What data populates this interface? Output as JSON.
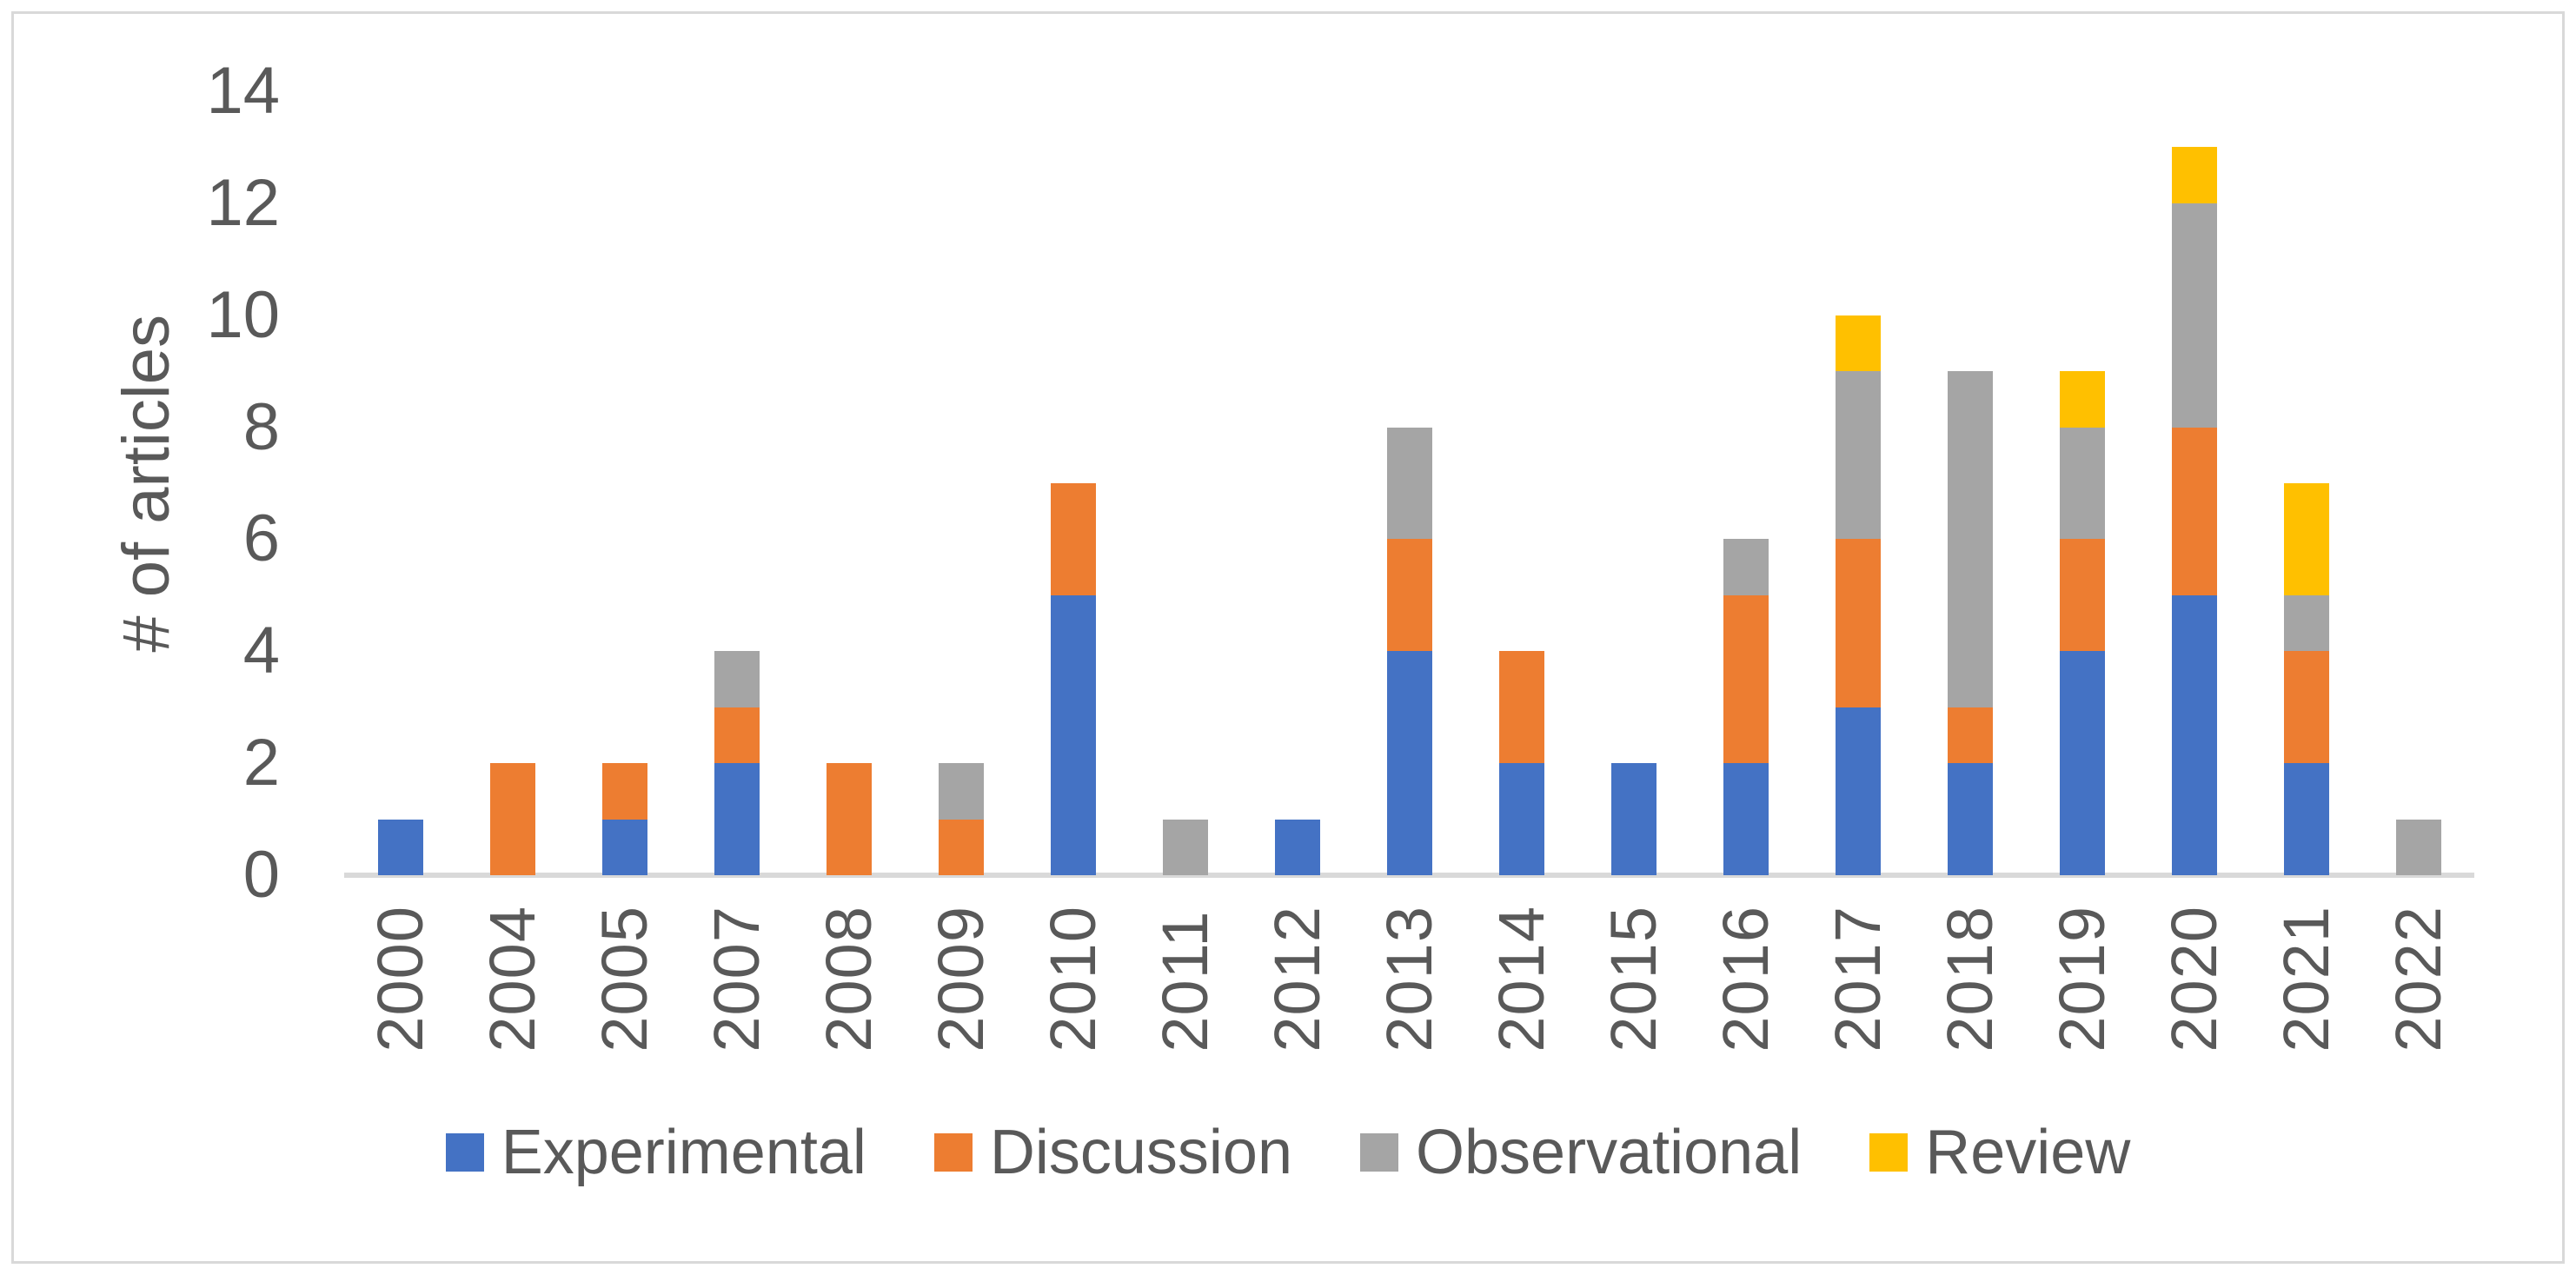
{
  "chart_data": {
    "type": "bar",
    "stacked": true,
    "title": "",
    "xlabel": "",
    "ylabel": "# of articles",
    "ylim": [
      0,
      14
    ],
    "yticks": [
      0,
      2,
      4,
      6,
      8,
      10,
      12,
      14
    ],
    "grid": false,
    "legend_position": "bottom",
    "axis_color": "#d9d9d9",
    "text_color": "#595959",
    "categories": [
      "2000",
      "2004",
      "2005",
      "2007",
      "2008",
      "2009",
      "2010",
      "2011",
      "2012",
      "2013",
      "2014",
      "2015",
      "2016",
      "2017",
      "2018",
      "2019",
      "2020",
      "2021",
      "2022"
    ],
    "series": [
      {
        "name": "Experimental",
        "color": "#4472C4",
        "values": [
          1,
          0,
          1,
          2,
          0,
          0,
          5,
          0,
          1,
          4,
          2,
          2,
          2,
          3,
          2,
          4,
          5,
          2,
          0
        ]
      },
      {
        "name": "Discussion",
        "color": "#ED7D31",
        "values": [
          0,
          2,
          1,
          1,
          2,
          1,
          2,
          0,
          0,
          2,
          2,
          0,
          3,
          3,
          1,
          2,
          3,
          2,
          0
        ]
      },
      {
        "name": "Observational",
        "color": "#A5A5A5",
        "values": [
          0,
          0,
          0,
          1,
          0,
          1,
          0,
          1,
          0,
          2,
          0,
          0,
          1,
          3,
          6,
          2,
          4,
          1,
          1
        ]
      },
      {
        "name": "Review",
        "color": "#FFC000",
        "values": [
          0,
          0,
          0,
          0,
          0,
          0,
          0,
          0,
          0,
          0,
          0,
          0,
          0,
          1,
          0,
          1,
          1,
          2,
          0
        ]
      }
    ],
    "totals": [
      1,
      2,
      2,
      4,
      2,
      2,
      7,
      1,
      1,
      8,
      4,
      2,
      6,
      10,
      9,
      9,
      13,
      7,
      1
    ]
  }
}
